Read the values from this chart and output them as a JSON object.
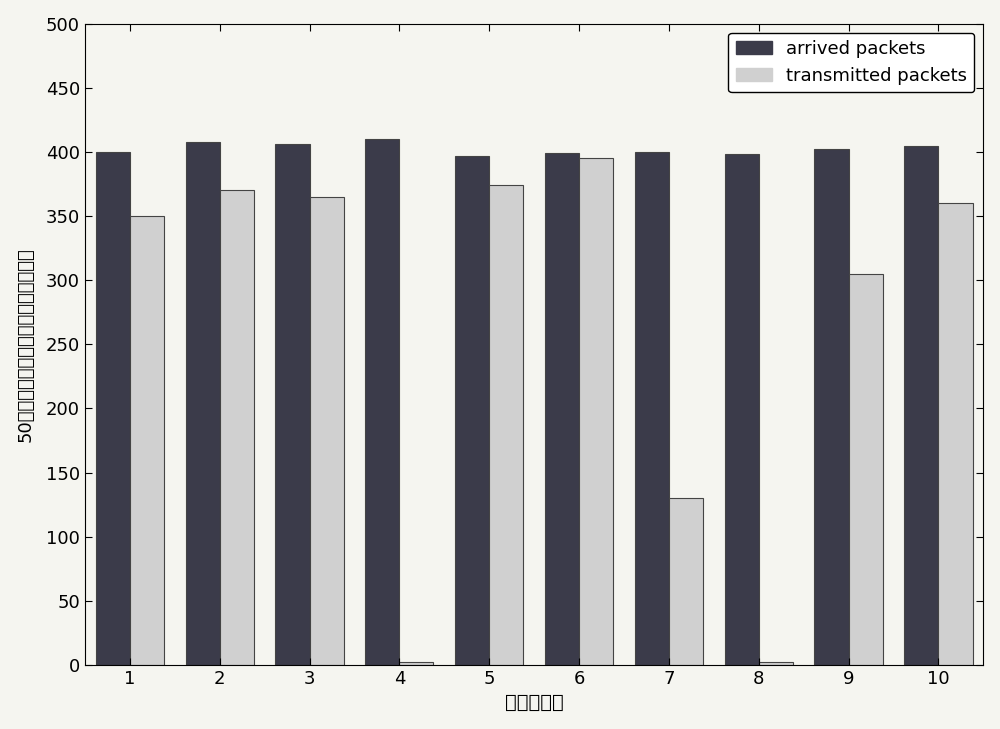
{
  "users": [
    1,
    2,
    3,
    4,
    5,
    6,
    7,
    8,
    9,
    10
  ],
  "arrived_packets": [
    400,
    408,
    406,
    410,
    397,
    399,
    400,
    398,
    402,
    405
  ],
  "transmitted_packets": [
    350,
    370,
    365,
    2,
    374,
    395,
    130,
    2,
    305,
    360
  ],
  "arrived_color": "#3b3b4a",
  "transmitted_color": "#d0d0d0",
  "bar_edge_color": "#444444",
  "xlabel": "用户的编号",
  "ylabel": "50个时隙中每个用户接收和发送数据包",
  "ylim": [
    0,
    500
  ],
  "yticks": [
    0,
    50,
    100,
    150,
    200,
    250,
    300,
    350,
    400,
    450,
    500
  ],
  "legend_labels": [
    "arrived packets",
    "transmitted packets"
  ],
  "bar_width": 0.38,
  "figsize": [
    10.0,
    7.29
  ],
  "dpi": 100,
  "background_color": "#f5f5f0",
  "tick_fontsize": 13,
  "label_fontsize": 14,
  "legend_fontsize": 13
}
